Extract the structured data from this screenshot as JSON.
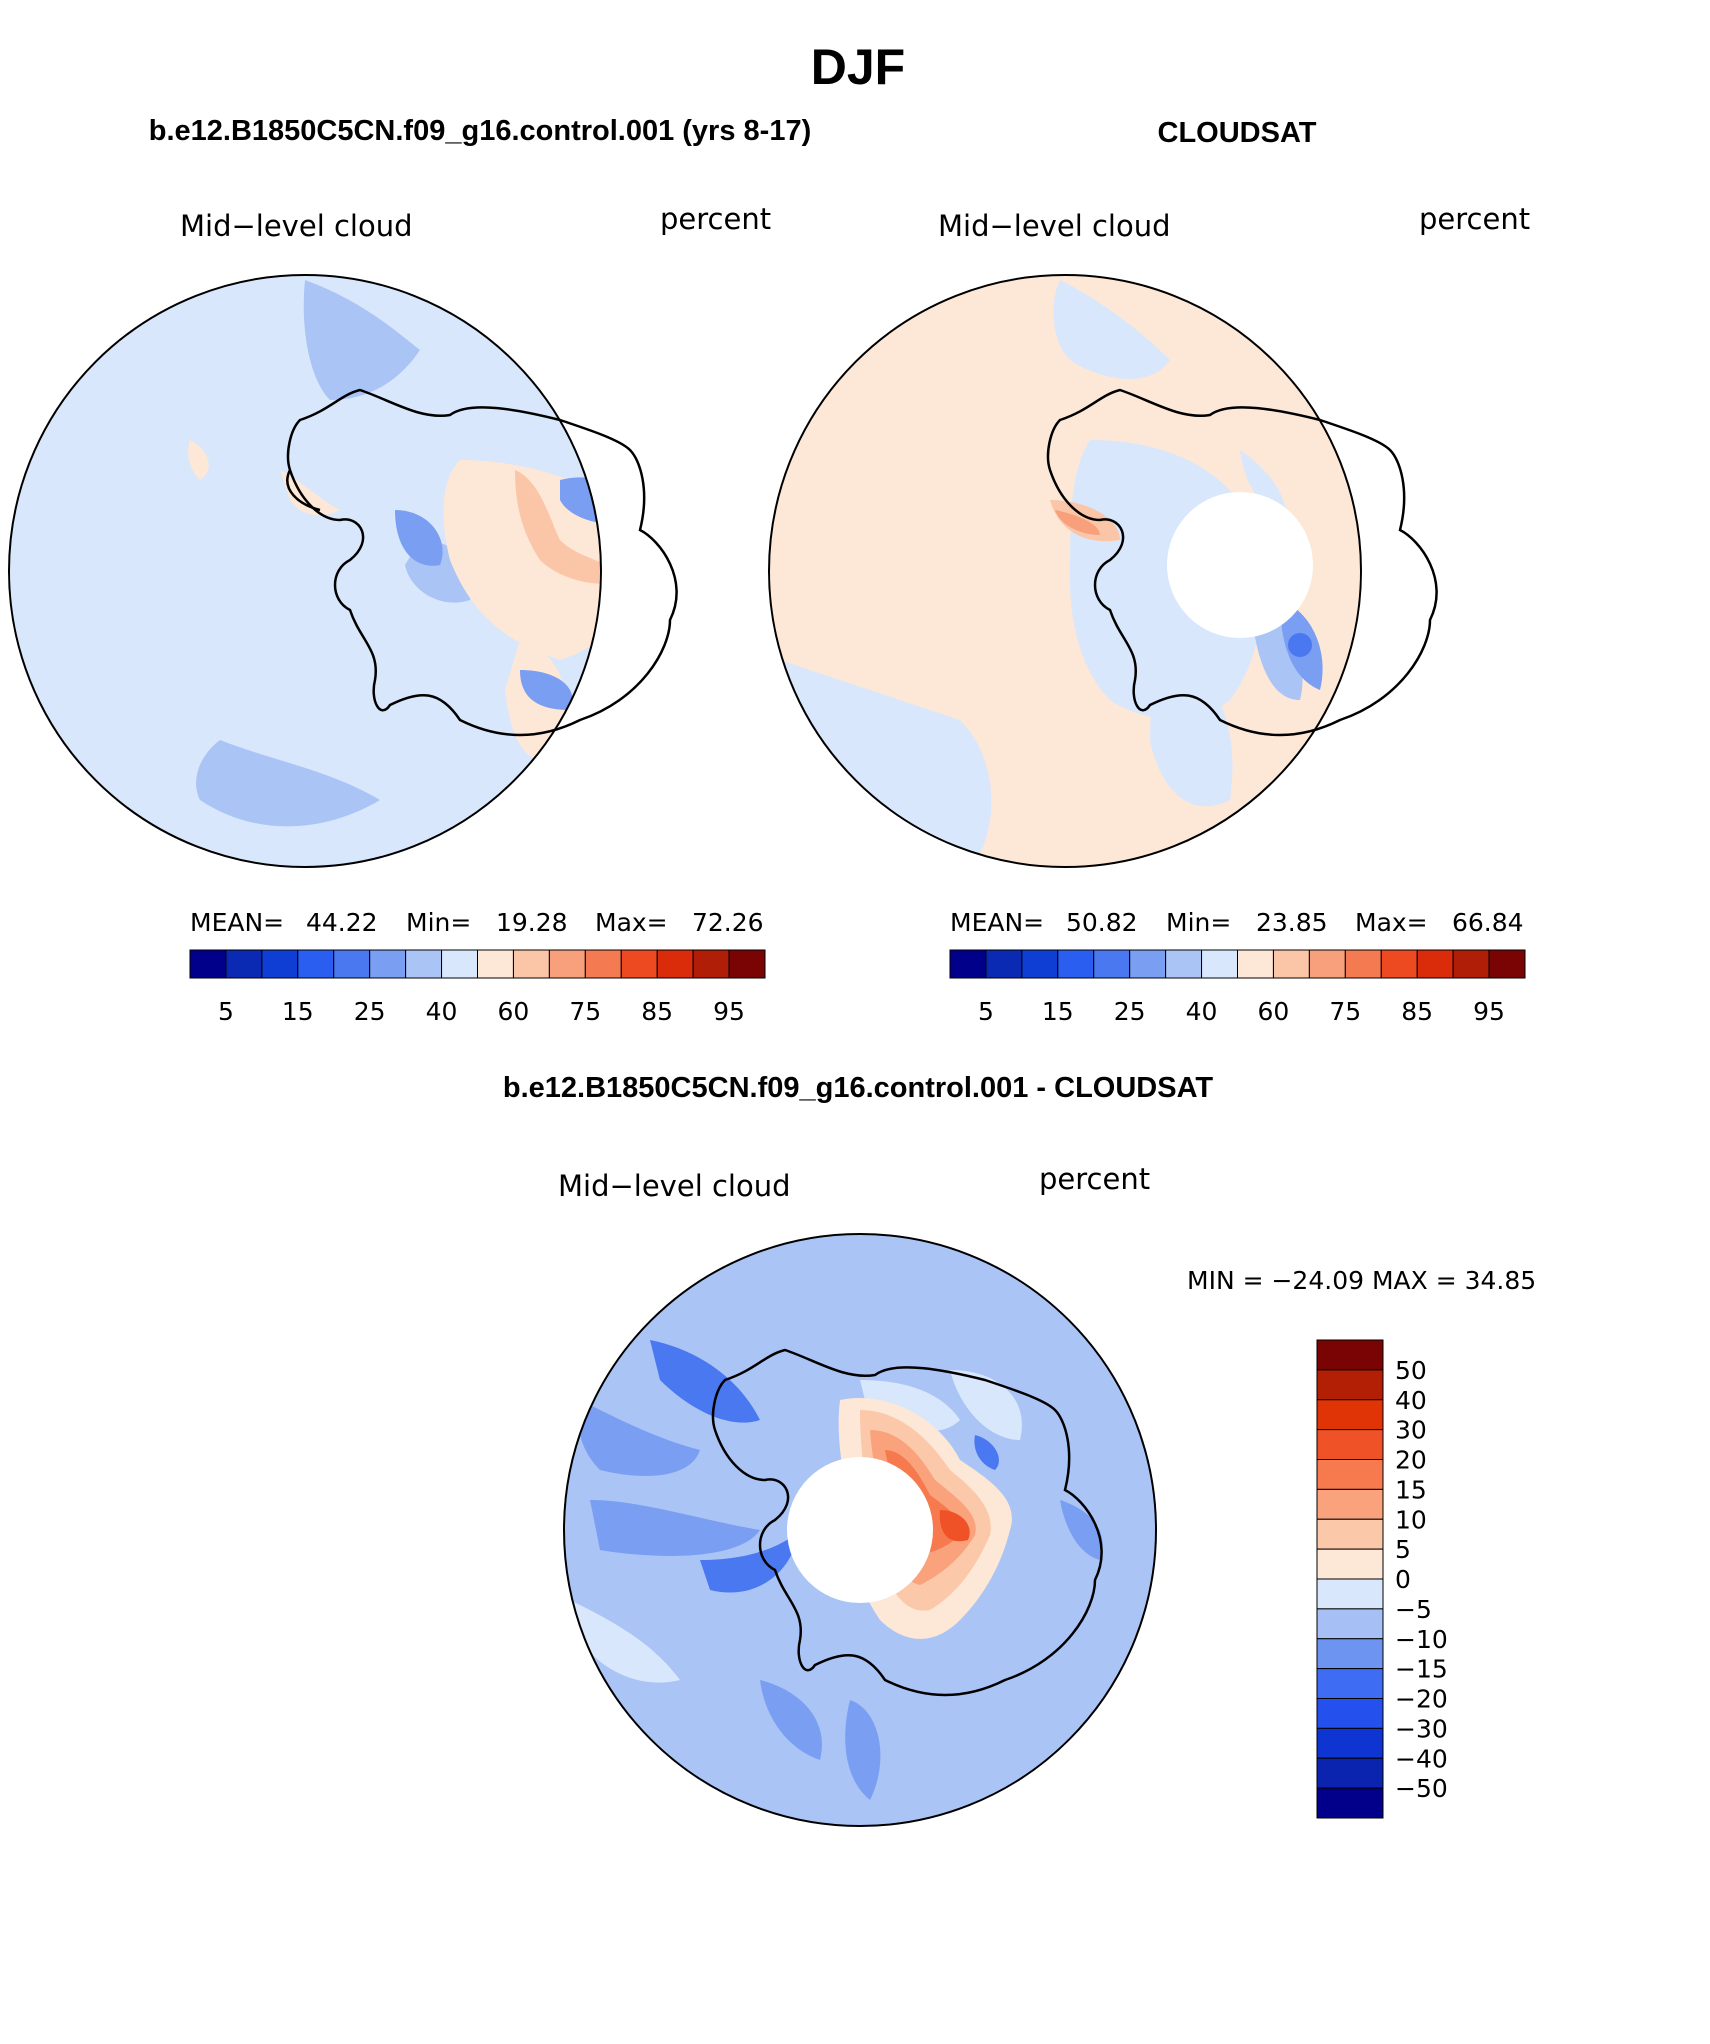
{
  "page_title": "DJF",
  "panels": {
    "model": {
      "heading": "b.e12.B1850C5CN.f09_g16.control.001 (yrs 8-17)",
      "variable": "Mid−level cloud",
      "units": "percent",
      "stats": {
        "mean_label": "MEAN=",
        "mean": "44.22",
        "min_label": "Min=",
        "min": "19.28",
        "max_label": "Max=",
        "max": "72.26"
      }
    },
    "obs": {
      "heading": "CLOUDSAT",
      "variable": "Mid−level cloud",
      "units": "percent",
      "stats": {
        "mean_label": "MEAN=",
        "mean": "50.82",
        "min_label": "Min=",
        "min": "23.85",
        "max_label": "Max=",
        "max": "66.84"
      }
    },
    "diff": {
      "heading": "b.e12.B1850C5CN.f09_g16.control.001 - CLOUDSAT",
      "variable": "Mid−level cloud",
      "units": "percent",
      "stats_text": "MIN = −24.09 MAX =   34.85"
    }
  },
  "colorbars": {
    "abs": {
      "colors": [
        "#00008b",
        "#0a2ab4",
        "#0f3ed4",
        "#2a5ef0",
        "#4a78f0",
        "#7a9ef2",
        "#abc4f6",
        "#d8e7fb",
        "#fde8d8",
        "#fbc6a8",
        "#f8a07c",
        "#f47a52",
        "#ee4a22",
        "#da2c0a",
        "#b01e08",
        "#7a0404"
      ],
      "labels": [
        "5",
        "15",
        "25",
        "40",
        "60",
        "75",
        "85",
        "95"
      ]
    },
    "diff": {
      "colors": [
        "#02008a",
        "#0a24b0",
        "#0e34d2",
        "#2450ee",
        "#3e6cf2",
        "#6e94f2",
        "#a6c0f6",
        "#d8e7fb",
        "#fde7d6",
        "#fcc8aa",
        "#f9a27c",
        "#f67a4e",
        "#f05228",
        "#e03406",
        "#b21f04",
        "#7a0404"
      ],
      "labels": [
        "50",
        "40",
        "30",
        "20",
        "15",
        "10",
        "5",
        "0",
        "−5",
        "−10",
        "−15",
        "−20",
        "−30",
        "−40",
        "−50"
      ]
    }
  },
  "map_colors": {
    "ocean_base": "#d8e7fb",
    "light_blue": "#abc4f6",
    "mid_blue": "#7a9ef2",
    "blue": "#4a78f0",
    "light_red": "#fde8d8",
    "pink": "#fbc6a8",
    "salmon": "#f8a07c",
    "orange": "#f47a52",
    "red": "#ee4a22"
  }
}
